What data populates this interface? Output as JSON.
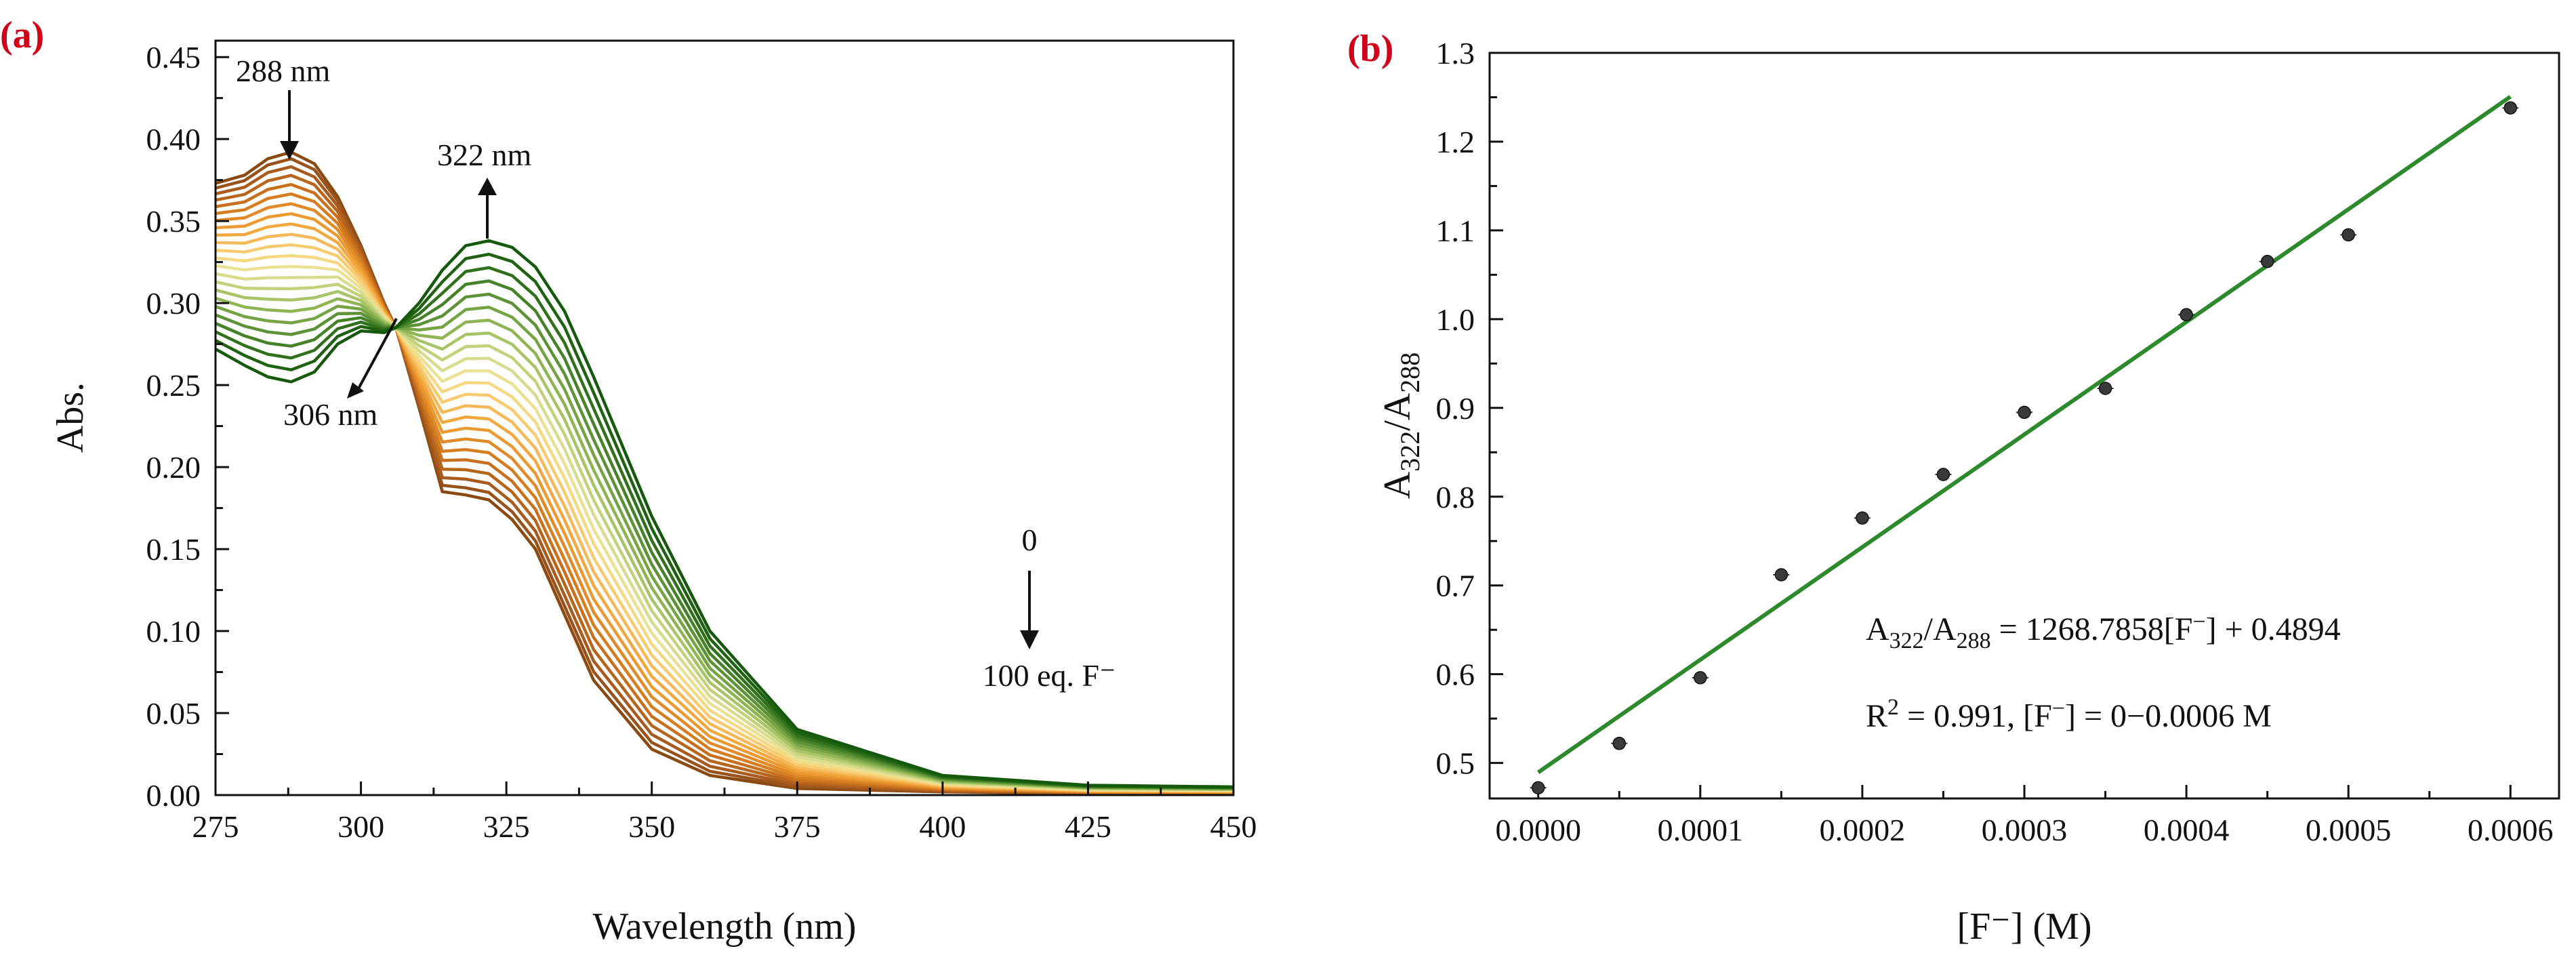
{
  "chart_data": [
    {
      "type": "line",
      "panel_label": "(a)",
      "xlabel": "Wavelength (nm)",
      "ylabel": "Abs.",
      "xlim": [
        275,
        450
      ],
      "ylim": [
        0.0,
        0.46
      ],
      "xticks": [
        "275",
        "300",
        "325",
        "350",
        "375",
        "400",
        "425",
        "450"
      ],
      "yticks": [
        "0.00",
        "0.05",
        "0.10",
        "0.15",
        "0.20",
        "0.25",
        "0.30",
        "0.35",
        "0.40",
        "0.45"
      ],
      "annotations": {
        "peak1": "288 nm",
        "peak2": "322 nm",
        "isosbestic": "306 nm",
        "titration_start": "0",
        "titration_end": "100 eq. F⁻"
      },
      "series_colors": [
        "#8a4a12",
        "#99531a",
        "#a85b1d",
        "#b8651c",
        "#c8701e",
        "#d67d20",
        "#e08a2a",
        "#eb9a32",
        "#f2a83e",
        "#f6b95a",
        "#f8cb70",
        "#f4d982",
        "#ebe193",
        "#d8dc8c",
        "#c2d27a",
        "#a8c466",
        "#8fb553",
        "#76a443",
        "#5d9336",
        "#458228",
        "#31711c",
        "#1f6312",
        "#155a0c"
      ],
      "series_endpoints": {
        "first": {
          "name": "0 eq. F⁻",
          "x": [
            275,
            280,
            284,
            288,
            292,
            296,
            300,
            304,
            306,
            310,
            314,
            318,
            322,
            326,
            330,
            335,
            340,
            350,
            360,
            375,
            400,
            425,
            450
          ],
          "y": [
            0.373,
            0.378,
            0.388,
            0.392,
            0.385,
            0.365,
            0.335,
            0.3,
            0.285,
            0.236,
            0.185,
            0.183,
            0.18,
            0.168,
            0.15,
            0.11,
            0.07,
            0.028,
            0.012,
            0.004,
            0.002,
            0.001,
            0.001
          ]
        },
        "last": {
          "name": "100 eq. F⁻",
          "x": [
            275,
            280,
            284,
            288,
            292,
            296,
            300,
            304,
            306,
            310,
            314,
            318,
            322,
            326,
            330,
            335,
            340,
            350,
            360,
            375,
            400,
            425,
            450
          ],
          "y": [
            0.272,
            0.262,
            0.255,
            0.252,
            0.258,
            0.275,
            0.283,
            0.282,
            0.285,
            0.3,
            0.32,
            0.335,
            0.338,
            0.334,
            0.322,
            0.295,
            0.255,
            0.17,
            0.1,
            0.04,
            0.012,
            0.006,
            0.005
          ]
        }
      }
    },
    {
      "type": "scatter",
      "panel_label": "(b)",
      "xlabel": "[F⁻] (M)",
      "ylabel": "A322/A288",
      "xlim": [
        -3e-05,
        0.00063
      ],
      "ylim": [
        0.46,
        1.3
      ],
      "xticks": [
        "0.0000",
        "0.0001",
        "0.0002",
        "0.0003",
        "0.0004",
        "0.0005",
        "0.0006"
      ],
      "yticks": [
        "0.5",
        "0.6",
        "0.7",
        "0.8",
        "0.9",
        "1.0",
        "1.1",
        "1.2",
        "1.3"
      ],
      "x": [
        0.0,
        5e-05,
        0.0001,
        0.00015,
        0.0002,
        0.00025,
        0.0003,
        0.00035,
        0.0004,
        0.00045,
        0.0005,
        0.0006
      ],
      "y": [
        0.472,
        0.522,
        0.596,
        0.712,
        0.776,
        0.825,
        0.895,
        0.922,
        1.005,
        1.065,
        1.095,
        1.238
      ],
      "fit": {
        "slope": 1268.7858,
        "intercept": 0.4894,
        "x_range": [
          0.0,
          0.0006
        ],
        "color": "#2c8a2c"
      },
      "equation": "A322/A288 = 1268.7858[F⁻] + 0.4894",
      "r2_text": "R2 = 0.991, [F⁻] = 0−0.0006 M"
    }
  ]
}
